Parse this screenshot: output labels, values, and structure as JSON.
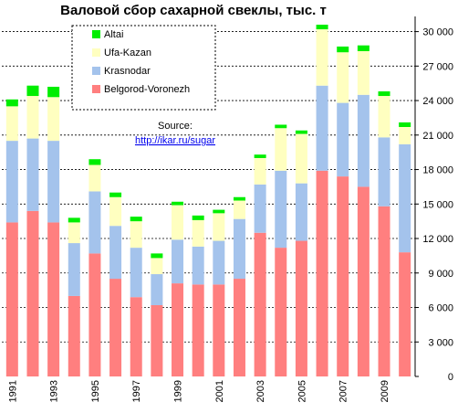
{
  "chart_data": {
    "type": "bar",
    "stacked": true,
    "title": "Валовой сбор сахарной свеклы, тыс. т",
    "source_label": "Source:",
    "source_link": "http://ikar.ru/sugar",
    "x": [
      1991,
      1992,
      1993,
      1994,
      1995,
      1996,
      1997,
      1998,
      1999,
      2000,
      2001,
      2002,
      2003,
      2004,
      2005,
      2006,
      2007,
      2008,
      2009,
      2010
    ],
    "x_tick_labels": [
      "1991",
      "1993",
      "1995",
      "1997",
      "1999",
      "2001",
      "2003",
      "2005",
      "2007",
      "2009"
    ],
    "y_ticks": [
      "0",
      "3 000",
      "6 000",
      "9 000",
      "12 000",
      "15 000",
      "18 000",
      "21 000",
      "24 000",
      "27 000",
      "30 000"
    ],
    "ylim": [
      0,
      31000
    ],
    "legend_position": "top-left",
    "series": [
      {
        "name": "Belgorod-Voronezh",
        "color": "#ff7f7f",
        "values": [
          13400,
          14400,
          13400,
          7000,
          10700,
          8500,
          6900,
          6200,
          8100,
          8000,
          8000,
          8500,
          12500,
          11200,
          11800,
          17900,
          17400,
          16500,
          14800,
          10800
        ]
      },
      {
        "name": "Krasnodar",
        "color": "#a4c3ec",
        "values": [
          7100,
          6300,
          7100,
          4600,
          5400,
          4600,
          4300,
          2700,
          3800,
          3300,
          3800,
          5200,
          4200,
          6700,
          5000,
          7400,
          6400,
          8000,
          6000,
          9400
        ]
      },
      {
        "name": "Ufa-Kazan",
        "color": "#ffffc0",
        "values": [
          3000,
          3700,
          3800,
          1800,
          2300,
          2500,
          2300,
          1400,
          3000,
          2300,
          2400,
          1600,
          2300,
          3700,
          4300,
          4900,
          4400,
          3800,
          3600,
          1500
        ]
      },
      {
        "name": "Altai",
        "color": "#00ee00",
        "values": [
          600,
          900,
          900,
          400,
          500,
          400,
          400,
          400,
          300,
          400,
          300,
          300,
          300,
          300,
          300,
          400,
          500,
          500,
          400,
          400
        ]
      }
    ]
  }
}
